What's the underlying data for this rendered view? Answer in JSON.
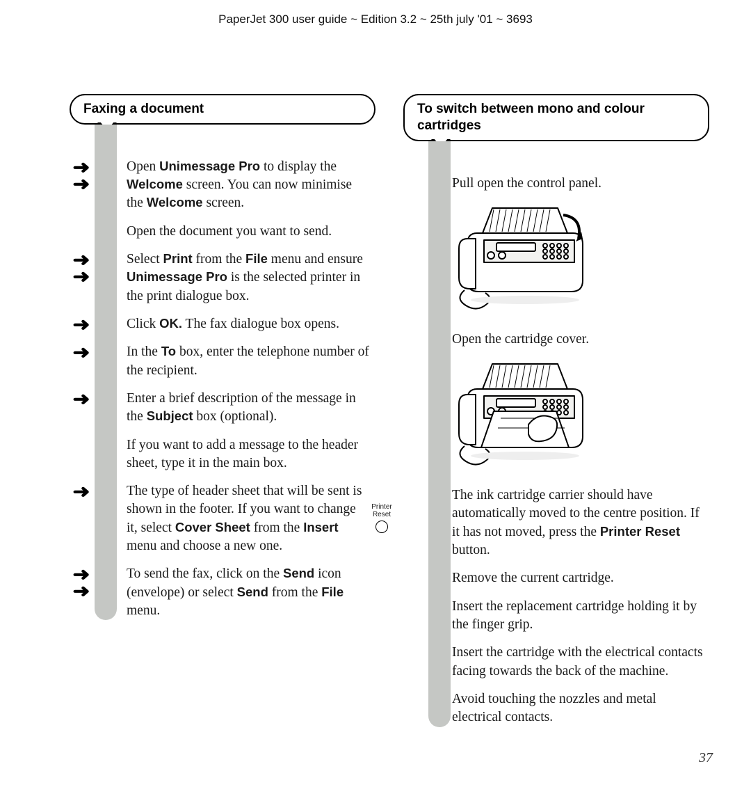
{
  "header": "PaperJet 300 user guide ~  Edition 3.2 ~ 25th july '01  ~ 3693",
  "page_number": "37",
  "left": {
    "heading": "Faxing a document",
    "steps": [
      {
        "arrows": 2,
        "html": "Open <b>Unimessage Pro</b> to display the <b>Welcome</b> screen. You can now minimise the <b>Welcome</b> screen."
      },
      {
        "arrows": 0,
        "html": "Open the document you want to send."
      },
      {
        "arrows": 2,
        "html": "Select <b>Print</b> from the <b>File</b> menu and ensure <b>Unimessage Pro</b> is the selected printer in the print dialogue box."
      },
      {
        "arrows": 1,
        "html": "Click <b>OK.</b> The fax dialogue box opens."
      },
      {
        "arrows": 1,
        "html": "In the <b>To</b> box, enter the telephone number of the recipient."
      },
      {
        "arrows": 1,
        "html": "Enter a brief description of the message in the <b>Subject</b> box (optional)."
      },
      {
        "arrows": 0,
        "html": "If you want to add a message to the header sheet, type it in the main box."
      },
      {
        "arrows": 1,
        "html": "The type of header sheet that will be sent is shown in the footer. If you want to change it, select <b>Cover Sheet</b> from the <b>Insert</b> menu and choose a new one."
      },
      {
        "arrows": 2,
        "html": "To send the fax, click on the <b>Send</b> icon (envelope) or select <b>Send</b> from the <b>File</b> menu."
      }
    ]
  },
  "right": {
    "heading": "To switch between mono and colour cartridges",
    "side_label": "Printer Reset",
    "steps": [
      {
        "type": "text",
        "html": "Pull open the control panel."
      },
      {
        "type": "illus",
        "variant": "panel-open"
      },
      {
        "type": "text",
        "html": "Open the cartridge cover."
      },
      {
        "type": "illus",
        "variant": "cartridge-cover"
      },
      {
        "type": "text",
        "side": true,
        "html": "The ink cartridge carrier should have automatically moved to the centre position. If it has not moved, press the <b>Printer Reset</b> button."
      },
      {
        "type": "text",
        "html": "Remove the current cartridge."
      },
      {
        "type": "text",
        "html": "Insert the replacement cartridge holding it by the finger grip."
      },
      {
        "type": "text",
        "html": "Insert the cartridge with the electrical contacts facing towards the back of the machine."
      },
      {
        "type": "text",
        "html": "Avoid touching the nozzles and metal electrical contacts."
      }
    ]
  }
}
